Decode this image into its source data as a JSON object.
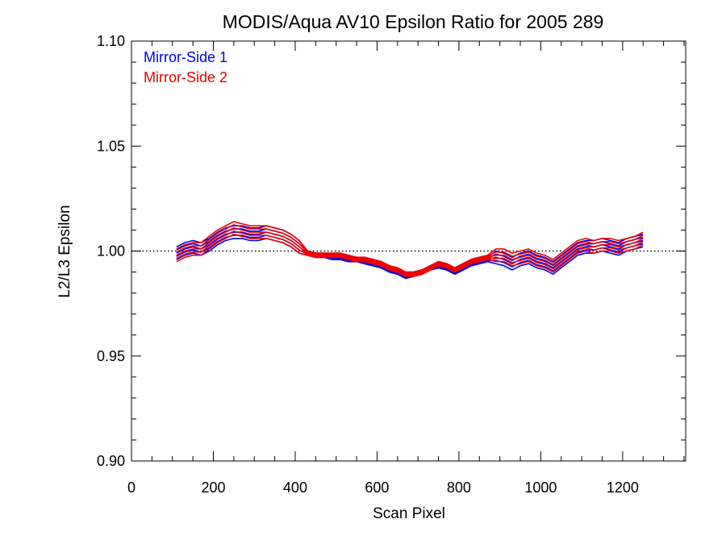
{
  "chart_data": {
    "type": "line",
    "title": "MODIS/Aqua AV10 Epsilon Ratio for 2005 289",
    "xlabel": "Scan Pixel",
    "ylabel": "L2/L3 Epsilon",
    "xlim": [
      0,
      1354
    ],
    "ylim": [
      0.9,
      1.1
    ],
    "x_ticks": [
      "0",
      "200",
      "400",
      "600",
      "800",
      "1000",
      "1200"
    ],
    "y_ticks": [
      "0.90",
      "0.95",
      "1.00",
      "1.05",
      "1.10"
    ],
    "reference_line": {
      "y": 1.0,
      "style": "dotted"
    },
    "legend_position": "top-left",
    "x": [
      110,
      130,
      150,
      170,
      190,
      210,
      230,
      250,
      270,
      290,
      310,
      330,
      350,
      370,
      390,
      410,
      430,
      450,
      470,
      490,
      510,
      530,
      550,
      570,
      590,
      610,
      630,
      650,
      670,
      690,
      710,
      730,
      750,
      770,
      790,
      810,
      830,
      850,
      870,
      890,
      910,
      930,
      950,
      970,
      990,
      1010,
      1030,
      1050,
      1070,
      1090,
      1110,
      1130,
      1150,
      1170,
      1190,
      1210,
      1230,
      1250
    ],
    "series": [
      {
        "name": "Mirror-Side 1",
        "color": "#0000ee",
        "values": [
          0.999,
          1.001,
          1.002,
          1.001,
          1.003,
          1.006,
          1.008,
          1.009,
          1.009,
          1.008,
          1.008,
          1.009,
          1.008,
          1.007,
          1.005,
          1.002,
          0.999,
          0.998,
          0.998,
          0.997,
          0.997,
          0.996,
          0.996,
          0.995,
          0.994,
          0.993,
          0.991,
          0.99,
          0.988,
          0.989,
          0.99,
          0.992,
          0.993,
          0.992,
          0.99,
          0.992,
          0.994,
          0.995,
          0.996,
          0.997,
          0.996,
          0.994,
          0.996,
          0.997,
          0.995,
          0.994,
          0.992,
          0.995,
          0.998,
          1.001,
          1.002,
          1.002,
          1.003,
          1.002,
          1.001,
          1.003,
          1.004,
          1.005
        ]
      },
      {
        "name": "Mirror-Side 2",
        "color": "#ee0000",
        "values": [
          0.998,
          1.0,
          1.001,
          1.001,
          1.004,
          1.007,
          1.009,
          1.011,
          1.01,
          1.009,
          1.009,
          1.009,
          1.008,
          1.007,
          1.005,
          1.002,
          0.999,
          0.998,
          0.998,
          0.998,
          0.998,
          0.997,
          0.996,
          0.996,
          0.995,
          0.994,
          0.992,
          0.991,
          0.989,
          0.989,
          0.99,
          0.992,
          0.994,
          0.993,
          0.991,
          0.993,
          0.995,
          0.996,
          0.997,
          0.998,
          0.998,
          0.996,
          0.997,
          0.998,
          0.996,
          0.995,
          0.993,
          0.996,
          0.999,
          1.002,
          1.003,
          1.002,
          1.003,
          1.003,
          1.002,
          1.003,
          1.004,
          1.006
        ]
      }
    ]
  }
}
